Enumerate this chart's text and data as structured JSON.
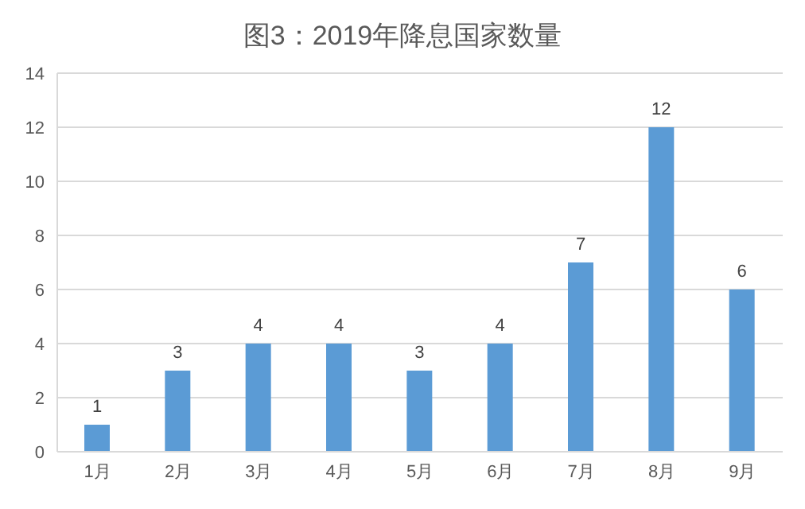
{
  "chart_data": {
    "type": "bar",
    "title": "图3：2019年降息国家数量",
    "categories": [
      "1月",
      "2月",
      "3月",
      "4月",
      "5月",
      "6月",
      "7月",
      "8月",
      "9月"
    ],
    "values": [
      1,
      3,
      4,
      4,
      3,
      4,
      7,
      12,
      6
    ],
    "color": "#5b9bd5",
    "ylim": [
      0,
      14
    ],
    "yticks": [
      0,
      2,
      4,
      6,
      8,
      10,
      12,
      14
    ],
    "grid": "y",
    "data_labels": true
  }
}
